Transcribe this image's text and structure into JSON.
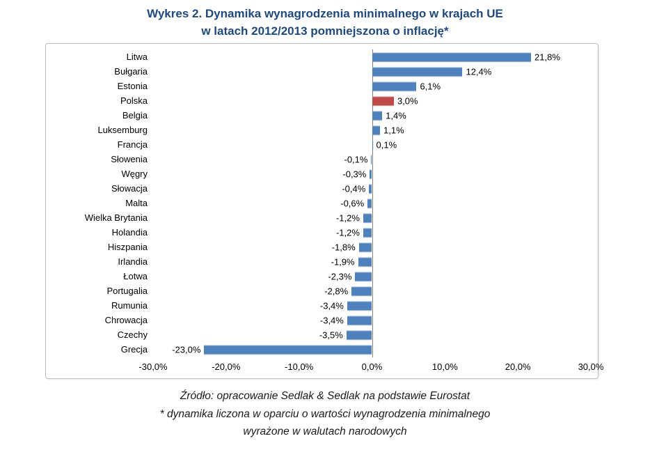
{
  "title": {
    "line1": "Wykres 2. Dynamika wynagrodzenia minimalnego w krajach UE",
    "line2": "w latach 2012/2013 pomniejszona o inflację*"
  },
  "chart_data": {
    "type": "bar",
    "orientation": "horizontal",
    "title": "Wykres 2. Dynamika wynagrodzenia minimalnego w krajach UE w latach 2012/2013 pomniejszona o inflację*",
    "categories": [
      "Litwa",
      "Bułgaria",
      "Estonia",
      "Polska",
      "Belgia",
      "Luksemburg",
      "Francja",
      "Słowenia",
      "Węgry",
      "Słowacja",
      "Malta",
      "Wielka Brytania",
      "Holandia",
      "Hiszpania",
      "Irlandia",
      "Łotwa",
      "Portugalia",
      "Rumunia",
      "Chrowacja",
      "Czechy",
      "Grecja"
    ],
    "values": [
      21.8,
      12.4,
      6.1,
      3.0,
      1.4,
      1.1,
      0.1,
      -0.1,
      -0.3,
      -0.4,
      -0.6,
      -1.2,
      -1.2,
      -1.8,
      -1.9,
      -2.3,
      -2.8,
      -3.4,
      -3.4,
      -3.5,
      -23.0
    ],
    "value_labels": [
      "21,8%",
      "12,4%",
      "6,1%",
      "3,0%",
      "1,4%",
      "1,1%",
      "0,1%",
      "-0,1%",
      "-0,3%",
      "-0,4%",
      "-0,6%",
      "-1,2%",
      "-1,2%",
      "-1,8%",
      "-1,9%",
      "-2,3%",
      "-2,8%",
      "-3,4%",
      "-3,4%",
      "-3,5%",
      "-23,0%"
    ],
    "xlim": [
      -30,
      30
    ],
    "x_tick_values": [
      -30,
      -20,
      -10,
      0,
      10,
      20,
      30
    ],
    "x_tick_labels": [
      "-30,0%",
      "-20,0%",
      "-10,0%",
      "0,0%",
      "10,0%",
      "20,0%",
      "30,0%"
    ],
    "xlabel": "",
    "ylabel": "",
    "grid": false,
    "legend": false,
    "bar_color": "#4F81BD",
    "highlight_category": "Polska",
    "highlight_color": "#BE4B48",
    "title_color": "#1F497D"
  },
  "footer": {
    "line1": "Źródło: opracowanie Sedlak & Sedlak na podstawie Eurostat",
    "line2": "* dynamika liczona w oparciu o wartości wynagrodzenia minimalnego",
    "line3": "wyrażone w walutach narodowych"
  }
}
